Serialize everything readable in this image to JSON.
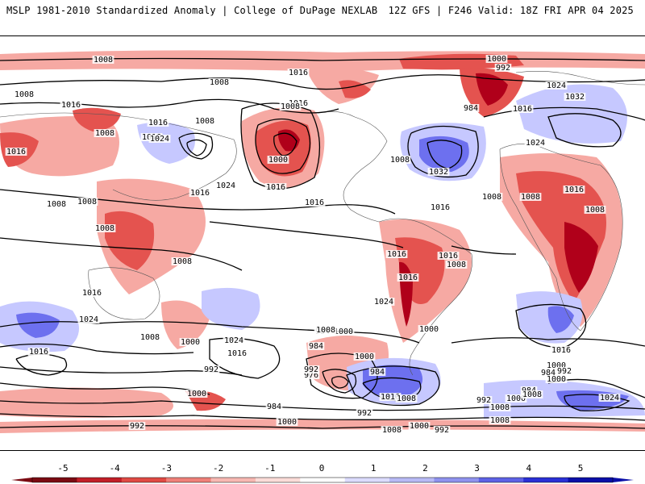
{
  "header": {
    "title_left": "MSLP 1981-2010 Standardized Anomaly | College of DuPage NEXLAB",
    "title_right": "12Z GFS | F246 Valid: 18Z FRI APR 04 2025"
  },
  "map": {
    "contour_labels": [
      "1008",
      "1008",
      "1000",
      "992",
      "1008",
      "1016",
      "1016",
      "1008",
      "1016",
      "1024",
      "1032",
      "984",
      "1016",
      "1008",
      "1016",
      "1016",
      "1008",
      "1024",
      "1000",
      "1016",
      "1024",
      "1016",
      "1008",
      "1008",
      "1032",
      "1024",
      "1016",
      "1008",
      "1008",
      "1008",
      "1016",
      "1016",
      "1008",
      "1008",
      "1016",
      "1016",
      "1016",
      "1024",
      "1016",
      "1008",
      "1016",
      "1008",
      "1000",
      "1024",
      "1016",
      "1000",
      "984",
      "976",
      "1024",
      "1016",
      "1000",
      "1008",
      "984",
      "992",
      "1008",
      "1000",
      "984",
      "1000",
      "992",
      "1016",
      "1008",
      "1008",
      "984",
      "992",
      "1000",
      "1016",
      "1008",
      "992",
      "984",
      "992",
      "1024",
      "1000",
      "1008",
      "1000",
      "992",
      "1008",
      "992",
      "984",
      "1000",
      "1000"
    ],
    "anomaly_colors": {
      "strong_negative": "#b0001a",
      "negative": "#e4534f",
      "weak_negative": "#f6a9a3",
      "weak_positive": "#c6c8ff",
      "positive": "#6d70ef",
      "strong_positive": "#1a22c8"
    }
  },
  "colorbar": {
    "ticks": [
      "-5",
      "-4",
      "-3",
      "-2",
      "-1",
      "0",
      "1",
      "2",
      "3",
      "4",
      "5"
    ],
    "colors": [
      "#7b0a12",
      "#c21f28",
      "#e04a44",
      "#ef8079",
      "#f7b8b2",
      "#fbdcd8",
      "#ffffff",
      "#dcdcff",
      "#b8baf5",
      "#8f92ee",
      "#5e62e6",
      "#2a2fd6",
      "#0a0fa8"
    ]
  }
}
